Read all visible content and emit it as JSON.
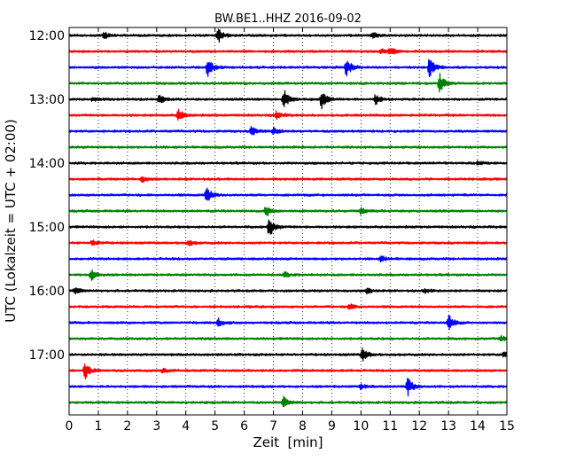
{
  "chart_data": {
    "type": "line",
    "title": "BW.BE1..HHZ 2016-09-02",
    "xlabel": "Zeit  [min]",
    "ylabel": "UTC (Lokalzeit = UTC + 02:00)",
    "xlim": [
      0,
      15
    ],
    "x_ticks": [
      "0",
      "1",
      "2",
      "3",
      "4",
      "5",
      "6",
      "7",
      "8",
      "9",
      "10",
      "11",
      "12",
      "13",
      "14",
      "15"
    ],
    "y_tick_labels": [
      "12:00",
      "13:00",
      "14:00",
      "15:00",
      "16:00",
      "17:00"
    ],
    "grid": "vertical-dotted",
    "trace_colors": [
      "#000000",
      "#ff0000",
      "#0000ff",
      "#008000"
    ],
    "traces": [
      {
        "start": "12:00",
        "events": [
          [
            1.2,
            0.3
          ],
          [
            5.1,
            0.8
          ],
          [
            10.4,
            0.3
          ]
        ]
      },
      {
        "start": "12:15",
        "events": [
          [
            11.0,
            0.4
          ],
          [
            10.7,
            0.2
          ]
        ]
      },
      {
        "start": "12:30",
        "events": [
          [
            4.75,
            0.9
          ],
          [
            9.5,
            0.9
          ],
          [
            12.35,
            1.0
          ]
        ]
      },
      {
        "start": "12:45",
        "events": [
          [
            12.7,
            1.0
          ]
        ]
      },
      {
        "start": "13:00",
        "events": [
          [
            3.1,
            0.5
          ],
          [
            7.35,
            1.0
          ],
          [
            8.65,
            0.9
          ],
          [
            10.5,
            0.5
          ],
          [
            0.8,
            0.2
          ]
        ]
      },
      {
        "start": "13:15",
        "events": [
          [
            3.75,
            0.6
          ],
          [
            7.1,
            0.4
          ]
        ]
      },
      {
        "start": "13:30",
        "events": [
          [
            6.25,
            0.5
          ],
          [
            7.0,
            0.35
          ]
        ]
      },
      {
        "start": "13:45",
        "events": []
      },
      {
        "start": "14:00",
        "events": [
          [
            14.0,
            0.15
          ]
        ]
      },
      {
        "start": "14:15",
        "events": [
          [
            2.5,
            0.3
          ]
        ]
      },
      {
        "start": "14:30",
        "events": [
          [
            4.7,
            0.8
          ]
        ]
      },
      {
        "start": "14:45",
        "events": [
          [
            6.75,
            0.6
          ],
          [
            10.0,
            0.3
          ]
        ]
      },
      {
        "start": "15:00",
        "events": [
          [
            6.85,
            1.0
          ]
        ]
      },
      {
        "start": "15:15",
        "events": [
          [
            0.8,
            0.3
          ],
          [
            4.1,
            0.25
          ]
        ]
      },
      {
        "start": "15:30",
        "events": [
          [
            10.7,
            0.3
          ]
        ]
      },
      {
        "start": "15:45",
        "events": [
          [
            0.75,
            0.6
          ],
          [
            7.4,
            0.25
          ]
        ]
      },
      {
        "start": "16:00",
        "events": [
          [
            0.2,
            0.3
          ],
          [
            10.2,
            0.3
          ],
          [
            12.2,
            0.2
          ]
        ]
      },
      {
        "start": "16:15",
        "events": [
          [
            9.6,
            0.3
          ]
        ]
      },
      {
        "start": "16:30",
        "events": [
          [
            5.1,
            0.4
          ],
          [
            13.0,
            0.9
          ]
        ]
      },
      {
        "start": "16:45",
        "events": [
          [
            14.8,
            0.3
          ]
        ]
      },
      {
        "start": "17:00",
        "events": [
          [
            10.05,
            0.6
          ],
          [
            14.9,
            0.3
          ]
        ]
      },
      {
        "start": "17:15",
        "events": [
          [
            0.55,
            0.8
          ],
          [
            3.2,
            0.2
          ]
        ]
      },
      {
        "start": "17:30",
        "events": [
          [
            11.6,
            0.9
          ],
          [
            10.0,
            0.25
          ]
        ]
      },
      {
        "start": "17:45",
        "events": [
          [
            7.35,
            0.5
          ]
        ]
      }
    ]
  }
}
